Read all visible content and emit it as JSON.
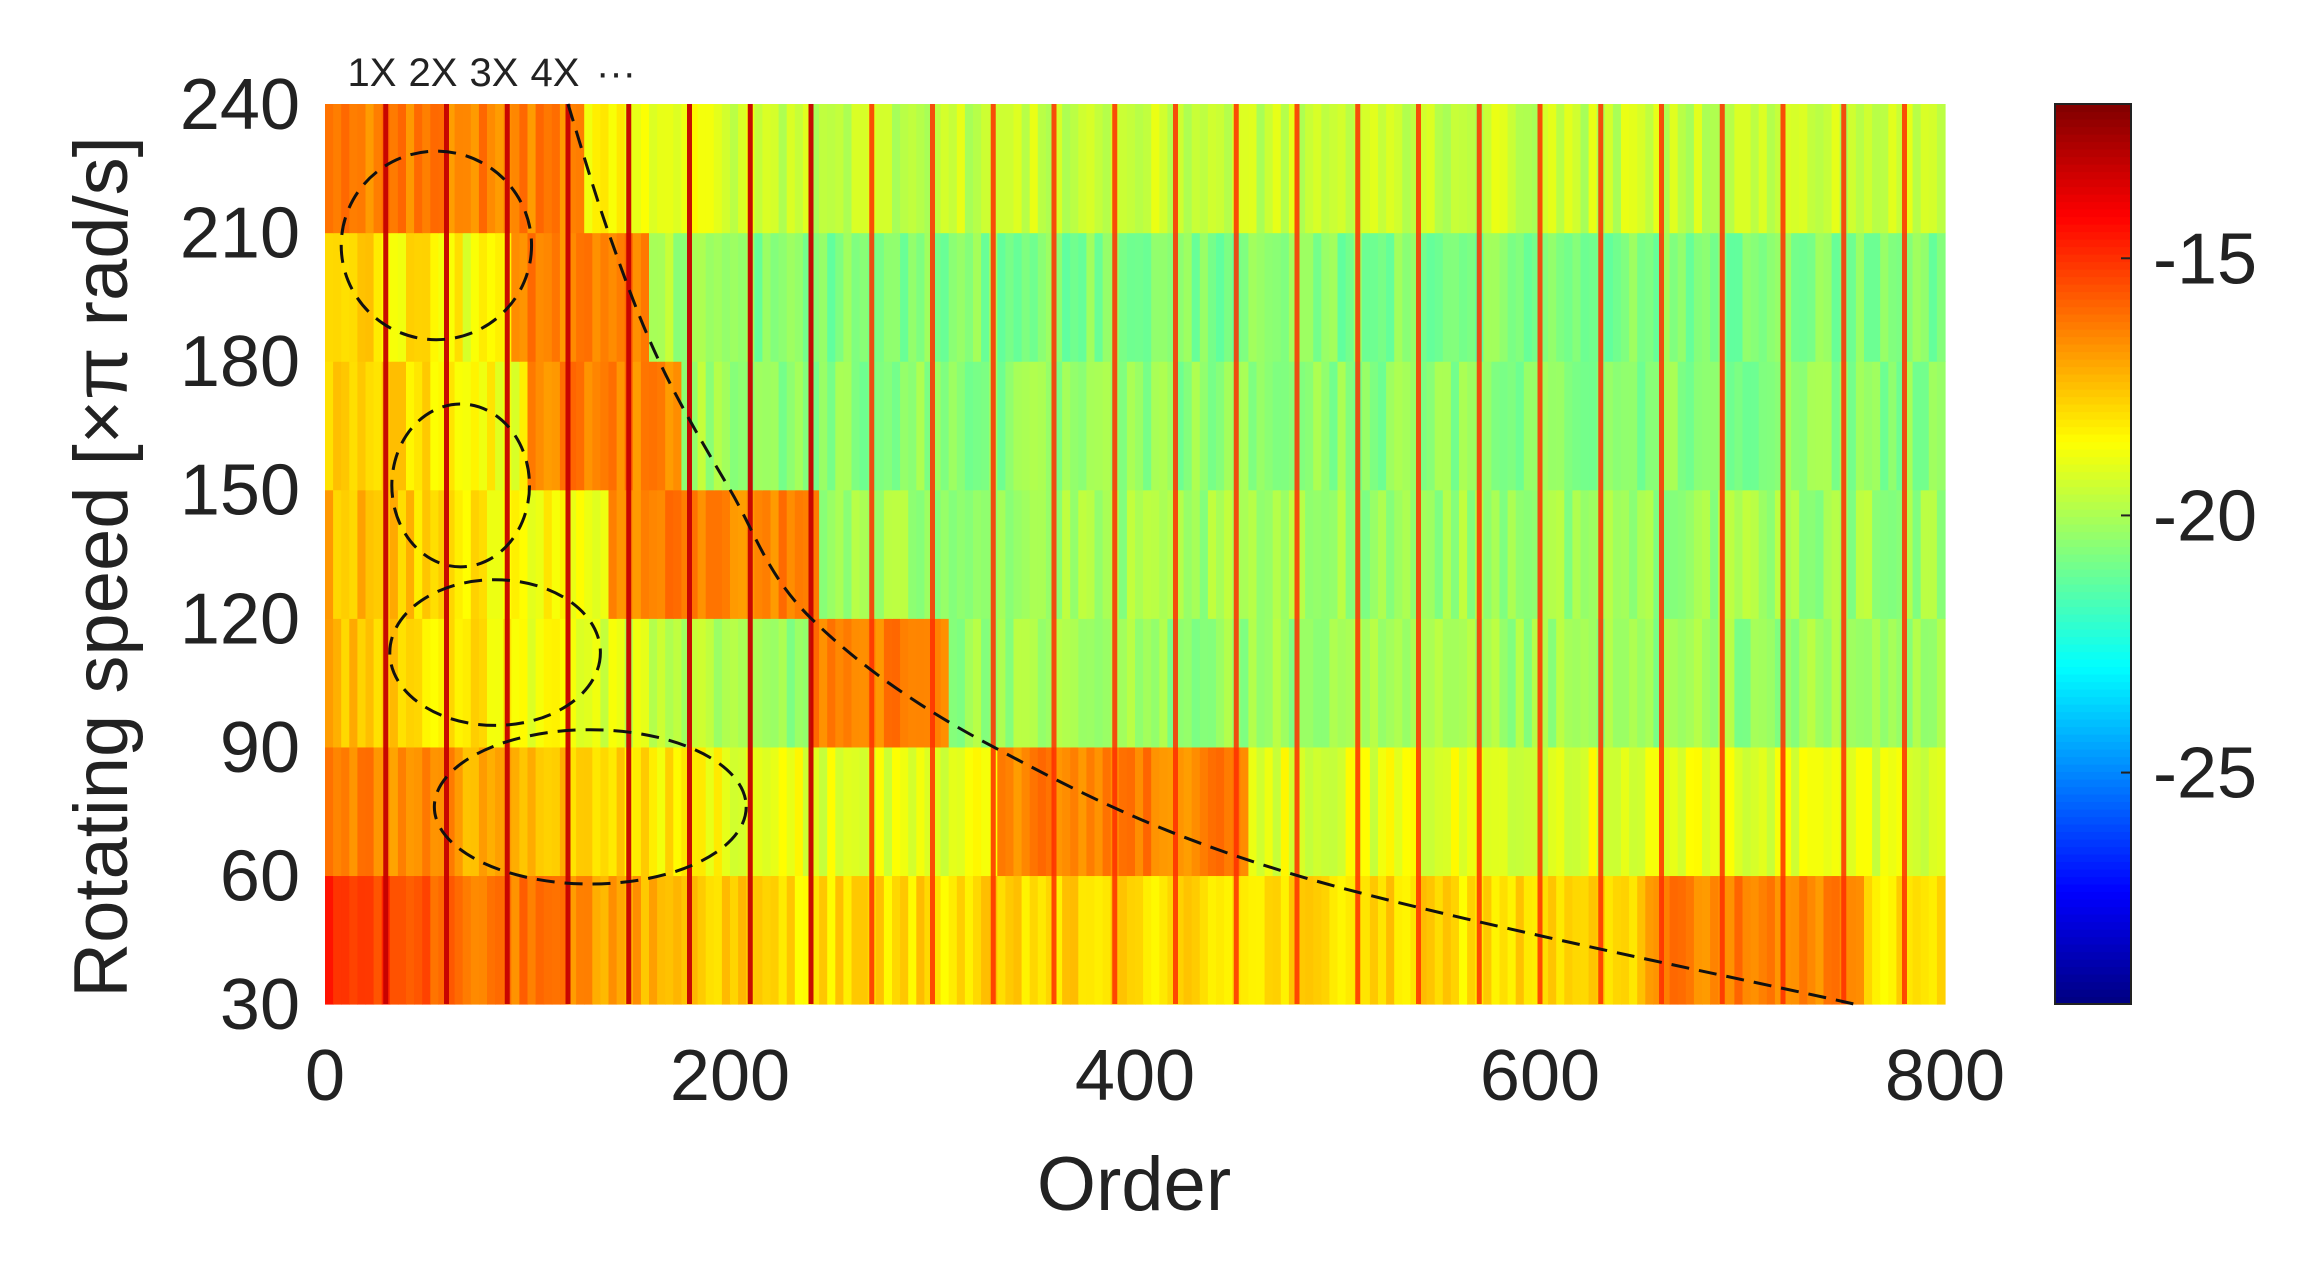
{
  "chart_data": {
    "type": "heatmap",
    "title": "",
    "xlabel": "Order",
    "ylabel": "Rotating speed [×π rad/s]",
    "xlim": [
      0,
      800
    ],
    "ylim": [
      30,
      240
    ],
    "x_ticks": [
      0,
      200,
      400,
      600,
      800
    ],
    "y_ticks": [
      30,
      60,
      90,
      120,
      150,
      180,
      210,
      240
    ],
    "speed_bands": [
      {
        "speed": 30,
        "ordinal": 1,
        "base": -18.0,
        "high_region": [
          650,
          760
        ]
      },
      {
        "speed": 60,
        "ordinal": 1,
        "base": -19.0,
        "high_region": [
          330,
          455
        ]
      },
      {
        "speed": 90,
        "ordinal": 1,
        "base": -20.3,
        "high_region": [
          240,
          310
        ]
      },
      {
        "speed": 120,
        "ordinal": 1,
        "base": -20.2,
        "high_region": [
          140,
          245
        ]
      },
      {
        "speed": 150,
        "ordinal": 1,
        "base": -20.5,
        "high_region": [
          100,
          175
        ]
      },
      {
        "speed": 180,
        "ordinal": 1,
        "base": -20.7,
        "high_region": [
          90,
          160
        ]
      },
      {
        "speed": 210,
        "ordinal": 1,
        "base": -19.5,
        "high_region": [
          0,
          130
        ]
      }
    ],
    "harmonic_spacing": 30,
    "harmonic_labels": [
      "1X",
      "2X",
      "3X",
      "4X",
      "···"
    ],
    "colorbar": {
      "colormap": "jet",
      "range": [
        -29.5,
        -12
      ],
      "ticks": [
        -15,
        -20,
        -25
      ]
    },
    "annotations": [
      {
        "type": "ellipse",
        "style": "dashed",
        "center": [
          55,
          207
        ],
        "radii": [
          47,
          22
        ]
      },
      {
        "type": "ellipse",
        "style": "dashed",
        "center": [
          67,
          151
        ],
        "radii": [
          34,
          19
        ]
      },
      {
        "type": "ellipse",
        "style": "dashed",
        "center": [
          84,
          112
        ],
        "radii": [
          52,
          17
        ]
      },
      {
        "type": "ellipse",
        "style": "dashed",
        "center": [
          131,
          76
        ],
        "radii": [
          77,
          18
        ]
      },
      {
        "type": "curve",
        "style": "dashed",
        "points": [
          [
            120,
            240
          ],
          [
            140,
            210
          ],
          [
            165,
            180
          ],
          [
            200,
            150
          ],
          [
            240,
            120
          ],
          [
            330,
            90
          ],
          [
            480,
            60
          ],
          [
            755,
            30
          ]
        ]
      }
    ]
  }
}
